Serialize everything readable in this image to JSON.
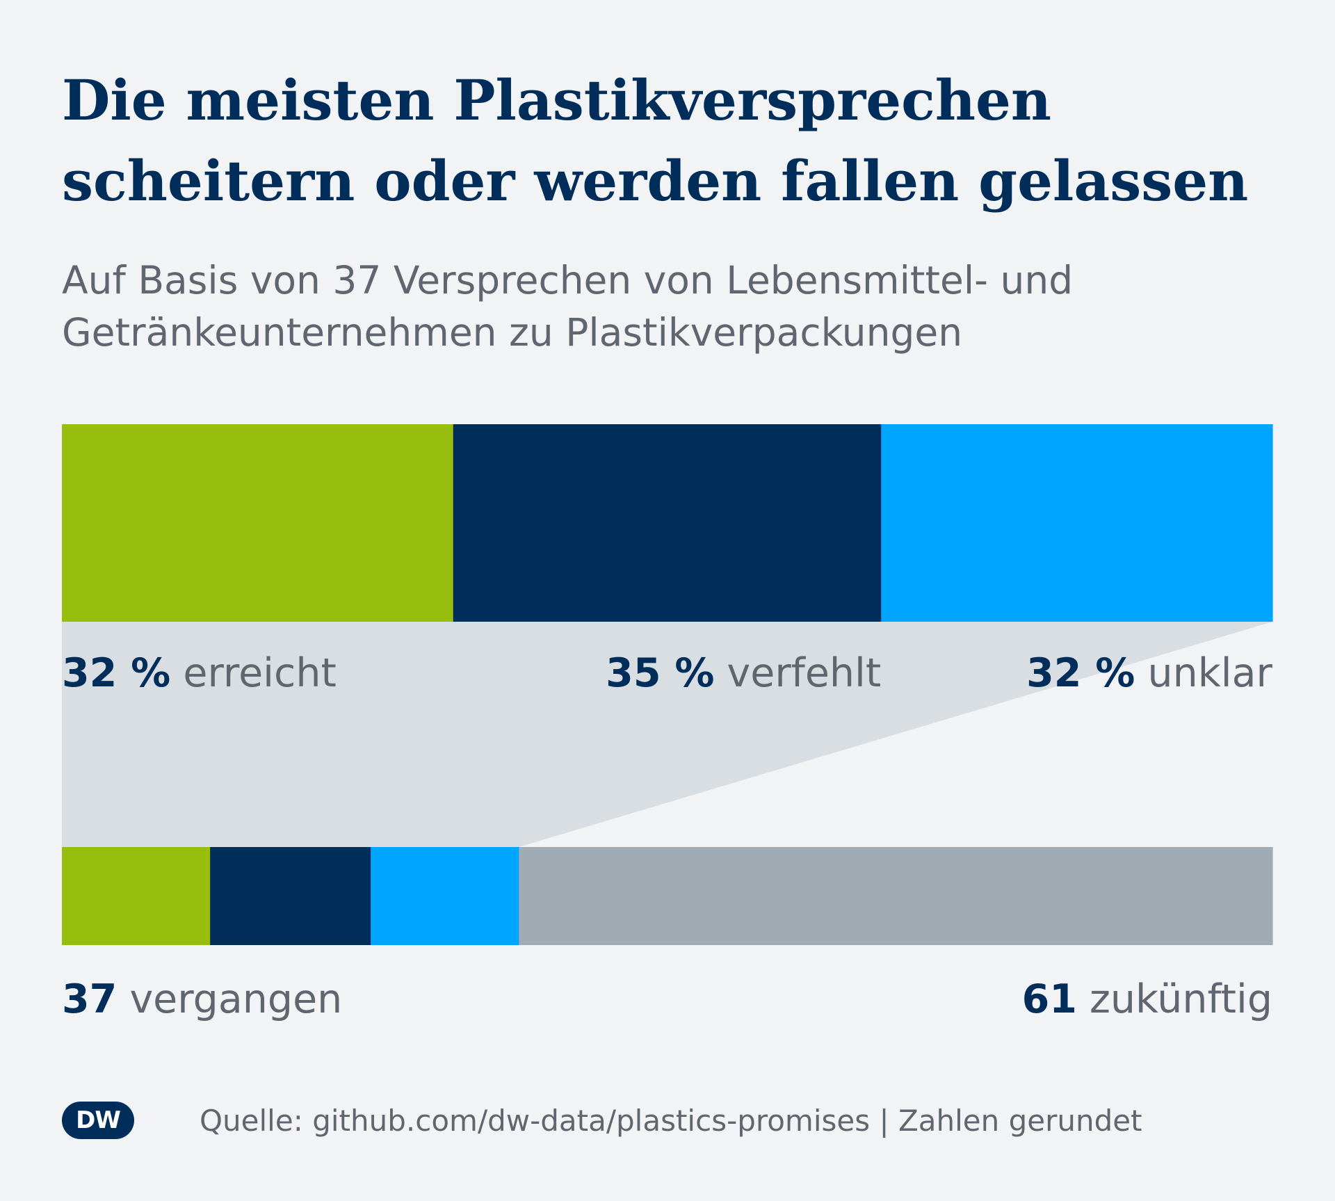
{
  "title_lines": [
    "Die meisten Plastikversprechen",
    "scheitern oder werden fallen gelassen"
  ],
  "subtitle_lines": [
    "Auf Basis von 37 Versprechen von Lebensmittel- und",
    "Getränkeunternehmen zu Plastikverpackungen"
  ],
  "colors": {
    "erreicht": "#97be0d",
    "verfehlt": "#002d5a",
    "unklar": "#00a5ff",
    "zukuenftig": "#a1abb3",
    "connector": "#d9dee2",
    "number_text": "#002d5a",
    "label_text": "#5f6670"
  },
  "chart_data": [
    {
      "type": "bar",
      "orientation": "horizontal-stacked",
      "unit": "%",
      "segments": [
        {
          "key": "erreicht",
          "value": 32,
          "value_label": "32 %",
          "label": "erreicht"
        },
        {
          "key": "verfehlt",
          "value": 35,
          "value_label": "35 %",
          "label": "verfehlt"
        },
        {
          "key": "unklar",
          "value": 32,
          "value_label": "32 %",
          "label": "unklar"
        }
      ]
    },
    {
      "type": "bar",
      "orientation": "horizontal-stacked",
      "unit": "count",
      "segments": [
        {
          "key": "erreicht",
          "value": 12
        },
        {
          "key": "verfehlt",
          "value": 13
        },
        {
          "key": "unklar",
          "value": 12
        },
        {
          "key": "zukuenftig",
          "value": 61
        }
      ],
      "group_labels": [
        {
          "value": "37",
          "label": "vergangen",
          "align": "left"
        },
        {
          "value": "61",
          "label": "zukünftig",
          "align": "right"
        }
      ]
    }
  ],
  "footer": {
    "logo": "DW",
    "source": "Quelle: github.com/dw-data/plastics-promises | Zahlen gerundet"
  }
}
